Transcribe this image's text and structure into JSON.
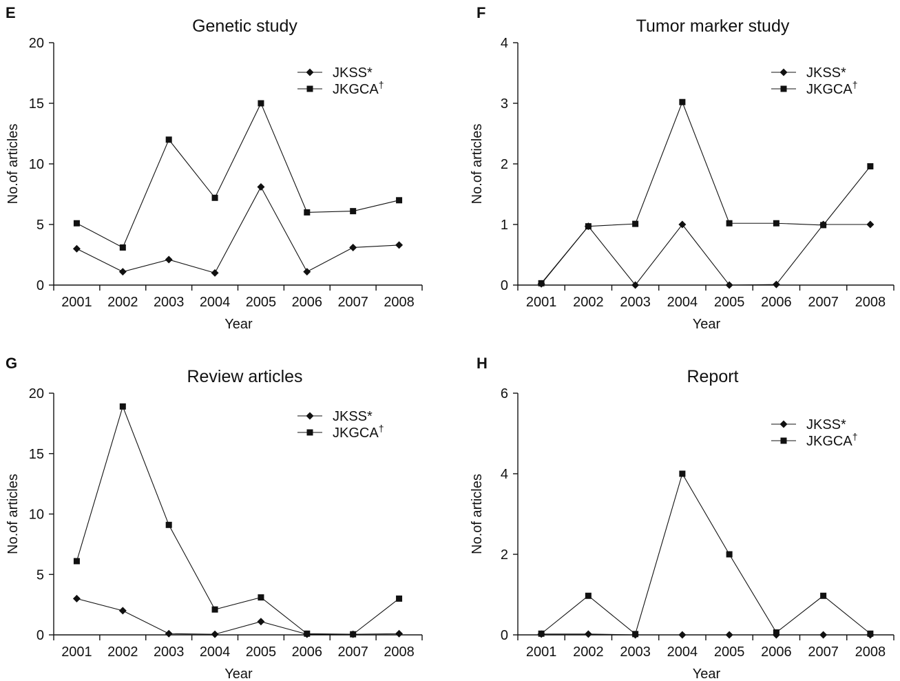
{
  "chart_data": [
    {
      "panel": "E",
      "type": "line",
      "title": "Genetic study",
      "xlabel": "Year",
      "ylabel": "No.of articles",
      "categories": [
        "2001",
        "2002",
        "2003",
        "2004",
        "2005",
        "2006",
        "2007",
        "2008"
      ],
      "ylim": [
        0,
        20
      ],
      "yticks": [
        0,
        5,
        10,
        15,
        20
      ],
      "legend_position": "top-right",
      "series": [
        {
          "name": "JKSS*",
          "marker": "diamond",
          "values": [
            3,
            1.1,
            2.1,
            1,
            8.1,
            1.1,
            3.1,
            3.3
          ]
        },
        {
          "name": "JKGCA†",
          "marker": "square",
          "values": [
            5.1,
            3.1,
            12,
            7.2,
            15,
            6,
            6.1,
            7
          ]
        }
      ]
    },
    {
      "panel": "F",
      "type": "line",
      "title": "Tumor marker study",
      "xlabel": "Year",
      "ylabel": "No.of articles",
      "categories": [
        "2001",
        "2002",
        "2003",
        "2004",
        "2005",
        "2006",
        "2007",
        "2008"
      ],
      "ylim": [
        0,
        4
      ],
      "yticks": [
        0,
        1,
        2,
        3,
        4
      ],
      "legend_position": "top-right",
      "series": [
        {
          "name": "JKSS*",
          "marker": "diamond",
          "values": [
            0.02,
            0.97,
            0,
            1,
            0,
            0.01,
            1,
            1
          ]
        },
        {
          "name": "JKGCA†",
          "marker": "square",
          "values": [
            0.03,
            0.97,
            1.01,
            3.02,
            1.02,
            1.02,
            0.99,
            1.96
          ]
        }
      ]
    },
    {
      "panel": "G",
      "type": "line",
      "title": "Review articles",
      "xlabel": "Year",
      "ylabel": "No.of articles",
      "categories": [
        "2001",
        "2002",
        "2003",
        "2004",
        "2005",
        "2006",
        "2007",
        "2008"
      ],
      "ylim": [
        0,
        20
      ],
      "yticks": [
        0,
        5,
        10,
        15,
        20
      ],
      "legend_position": "top-right",
      "series": [
        {
          "name": "JKSS*",
          "marker": "diamond",
          "values": [
            3,
            2,
            0.1,
            0.05,
            1.1,
            0.05,
            0.05,
            0.1
          ]
        },
        {
          "name": "JKGCA†",
          "marker": "square",
          "values": [
            6.1,
            18.9,
            9.1,
            2.1,
            3.1,
            0.1,
            0.05,
            3
          ]
        }
      ]
    },
    {
      "panel": "H",
      "type": "line",
      "title": "Report",
      "xlabel": "Year",
      "ylabel": "No.of articles",
      "categories": [
        "2001",
        "2002",
        "2003",
        "2004",
        "2005",
        "2006",
        "2007",
        "2008"
      ],
      "ylim": [
        0,
        6
      ],
      "yticks": [
        0,
        2,
        4,
        6
      ],
      "legend_position": "top-right",
      "series": [
        {
          "name": "JKSS*",
          "marker": "diamond",
          "values": [
            0.02,
            0.02,
            0,
            0,
            0,
            0,
            0,
            0
          ]
        },
        {
          "name": "JKGCA†",
          "marker": "square",
          "values": [
            0.03,
            0.97,
            0.02,
            4,
            2,
            0.06,
            0.97,
            0.03
          ]
        }
      ]
    }
  ]
}
